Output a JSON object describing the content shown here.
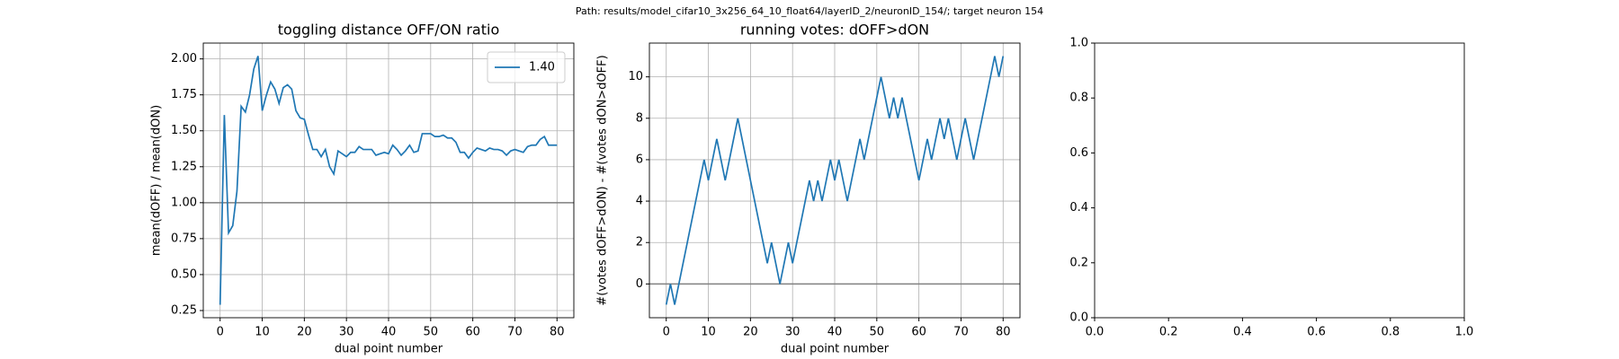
{
  "title": "Path: results/model_cifar10_3x256_64_10_float64/layerID_2/neuronID_154/; target neuron 154",
  "chart_data": [
    {
      "type": "line",
      "title": "toggling distance OFF/ON ratio",
      "x_label": "dual point number",
      "y_label": "mean(dOFF) / mean(dON)",
      "xlim": [
        -4,
        84
      ],
      "ylim": [
        0.2,
        2.11
      ],
      "xticks": [
        0,
        10,
        20,
        30,
        40,
        50,
        60,
        70,
        80
      ],
      "yticks": [
        {
          "value": 0.25,
          "label": "0.25"
        },
        {
          "value": 0.5,
          "label": "0.50"
        },
        {
          "value": 0.75,
          "label": "0.75"
        },
        {
          "value": 1,
          "label": "1.00"
        },
        {
          "value": 1.25,
          "label": "1.25"
        },
        {
          "value": 1.5,
          "label": "1.50"
        },
        {
          "value": 1.75,
          "label": "1.75"
        },
        {
          "value": 2,
          "label": "2.00"
        }
      ],
      "grid": true,
      "hline": 1,
      "hline_color": "#808080",
      "legend": "upper right",
      "x": [
        0,
        1,
        2,
        3,
        4,
        5,
        6,
        7,
        8,
        9,
        10,
        11,
        12,
        13,
        14,
        15,
        16,
        17,
        18,
        19,
        20,
        21,
        22,
        23,
        24,
        25,
        26,
        27,
        28,
        29,
        30,
        31,
        32,
        33,
        34,
        35,
        36,
        37,
        38,
        39,
        40,
        41,
        42,
        43,
        44,
        45,
        46,
        47,
        48,
        49,
        50,
        51,
        52,
        53,
        54,
        55,
        56,
        57,
        58,
        59,
        60,
        61,
        62,
        63,
        64,
        65,
        66,
        67,
        68,
        69,
        70,
        71,
        72,
        73,
        74,
        75,
        76,
        77,
        78,
        79,
        80
      ],
      "series": [
        {
          "name": "1.40",
          "color": "#1f77b4",
          "values": [
            0.29,
            1.61,
            0.79,
            0.84,
            1.08,
            1.67,
            1.63,
            1.75,
            1.93,
            2.02,
            1.64,
            1.75,
            1.84,
            1.79,
            1.69,
            1.8,
            1.82,
            1.79,
            1.64,
            1.59,
            1.58,
            1.47,
            1.37,
            1.37,
            1.32,
            1.37,
            1.25,
            1.2,
            1.36,
            1.34,
            1.32,
            1.35,
            1.35,
            1.39,
            1.37,
            1.37,
            1.37,
            1.33,
            1.34,
            1.35,
            1.34,
            1.4,
            1.37,
            1.33,
            1.36,
            1.4,
            1.35,
            1.36,
            1.48,
            1.48,
            1.48,
            1.46,
            1.46,
            1.47,
            1.45,
            1.45,
            1.42,
            1.35,
            1.35,
            1.31,
            1.35,
            1.38,
            1.37,
            1.36,
            1.38,
            1.37,
            1.37,
            1.36,
            1.33,
            1.36,
            1.37,
            1.36,
            1.35,
            1.39,
            1.4,
            1.4,
            1.44,
            1.46,
            1.4,
            1.4,
            1.4
          ]
        }
      ]
    },
    {
      "type": "line",
      "title": "running votes: dOFF>dON",
      "x_label": "dual point number",
      "y_label": "#(votes dOFF>dON) - #(votes dON>dOFF)",
      "xlim": [
        -4,
        84
      ],
      "ylim": [
        -1.63,
        11.63
      ],
      "xticks": [
        0,
        10,
        20,
        30,
        40,
        50,
        60,
        70,
        80
      ],
      "yticks": [
        0,
        2,
        4,
        6,
        8,
        10
      ],
      "grid": true,
      "hline": 0,
      "hline_color": "#808080",
      "x": [
        0,
        1,
        2,
        3,
        4,
        5,
        6,
        7,
        8,
        9,
        10,
        11,
        12,
        13,
        14,
        15,
        16,
        17,
        18,
        19,
        20,
        21,
        22,
        23,
        24,
        25,
        26,
        27,
        28,
        29,
        30,
        31,
        32,
        33,
        34,
        35,
        36,
        37,
        38,
        39,
        40,
        41,
        42,
        43,
        44,
        45,
        46,
        47,
        48,
        49,
        50,
        51,
        52,
        53,
        54,
        55,
        56,
        57,
        58,
        59,
        60,
        61,
        62,
        63,
        64,
        65,
        66,
        67,
        68,
        69,
        70,
        71,
        72,
        73,
        74,
        75,
        76,
        77,
        78,
        79,
        80
      ],
      "series": [
        {
          "color": "#1f77b4",
          "values": [
            -1,
            0,
            -1,
            0,
            1,
            2,
            3,
            4,
            5,
            6,
            5,
            6,
            7,
            6,
            5,
            6,
            7,
            8,
            7,
            6,
            5,
            4,
            3,
            2,
            1,
            2,
            1,
            0,
            1,
            2,
            1,
            2,
            3,
            4,
            5,
            4,
            5,
            4,
            5,
            6,
            5,
            6,
            5,
            4,
            5,
            6,
            7,
            6,
            7,
            8,
            9,
            10,
            9,
            8,
            9,
            8,
            9,
            8,
            7,
            6,
            5,
            6,
            7,
            6,
            7,
            8,
            7,
            8,
            7,
            6,
            7,
            8,
            7,
            6,
            7,
            8,
            9,
            10,
            11,
            10,
            11
          ]
        }
      ]
    },
    {
      "type": "line",
      "xlim": [
        0,
        1
      ],
      "ylim": [
        0,
        1
      ],
      "xticks": [
        {
          "value": 0,
          "label": "0.0"
        },
        {
          "value": 0.2,
          "label": "0.2"
        },
        {
          "value": 0.4,
          "label": "0.4"
        },
        {
          "value": 0.6,
          "label": "0.6"
        },
        {
          "value": 0.8,
          "label": "0.8"
        },
        {
          "value": 1,
          "label": "1.0"
        }
      ],
      "yticks": [
        {
          "value": 0,
          "label": "0.0"
        },
        {
          "value": 0.2,
          "label": "0.2"
        },
        {
          "value": 0.4,
          "label": "0.4"
        },
        {
          "value": 0.6,
          "label": "0.6"
        },
        {
          "value": 0.8,
          "label": "0.8"
        },
        {
          "value": 1,
          "label": "1.0"
        }
      ],
      "grid": false,
      "series": []
    }
  ]
}
